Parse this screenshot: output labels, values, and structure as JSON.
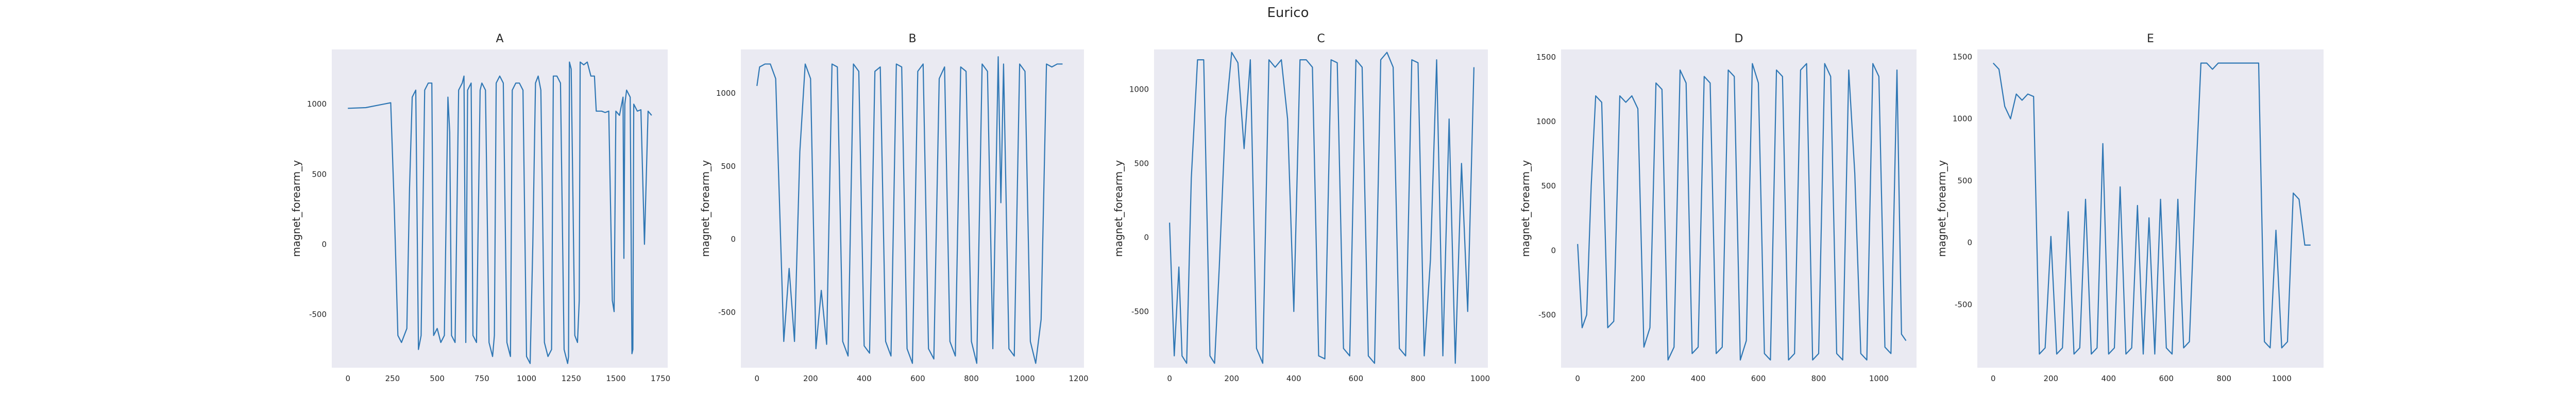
{
  "figure": {
    "suptitle": "Eurico"
  },
  "colors": {
    "line": "#2f77b4",
    "panel_bg": "#eaeaf2",
    "text": "#262626"
  },
  "chart_data": [
    {
      "type": "line",
      "title": "A",
      "xlabel": "",
      "ylabel": "magnet_forearm_y",
      "xlim": [
        -90,
        1790
      ],
      "ylim": [
        -880,
        1390
      ],
      "xticks": [
        0,
        250,
        500,
        750,
        1000,
        1250,
        1500,
        1750
      ],
      "yticks": [
        -500,
        0,
        500,
        1000
      ],
      "grid": false,
      "series": [
        {
          "x": [
            0,
            100,
            200,
            240,
            260,
            280,
            300,
            330,
            345,
            360,
            380,
            395,
            410,
            430,
            450,
            470,
            480,
            500,
            520,
            540,
            560,
            570,
            580,
            600,
            620,
            640,
            650,
            660,
            670,
            690,
            700,
            720,
            740,
            750,
            770,
            790,
            810,
            820,
            830,
            850,
            870,
            890,
            900,
            910,
            920,
            940,
            960,
            980,
            1000,
            1020,
            1035,
            1050,
            1065,
            1080,
            1100,
            1120,
            1140,
            1150,
            1170,
            1190,
            1210,
            1230,
            1235,
            1240,
            1250,
            1270,
            1285,
            1295,
            1300,
            1320,
            1340,
            1360,
            1380,
            1390,
            1400,
            1420,
            1440,
            1460,
            1480,
            1490,
            1500,
            1520,
            1540,
            1545,
            1550,
            1560,
            1580,
            1590,
            1595,
            1600,
            1620,
            1640,
            1660,
            1680,
            1700
          ],
          "y": [
            970,
            975,
            1000,
            1010,
            250,
            -650,
            -700,
            -600,
            400,
            1050,
            1100,
            -750,
            -650,
            1100,
            1150,
            1150,
            -650,
            -600,
            -700,
            -650,
            1050,
            800,
            -650,
            -700,
            1100,
            1150,
            1200,
            -700,
            1100,
            1150,
            -650,
            -700,
            1100,
            1150,
            1100,
            -700,
            -800,
            -650,
            1150,
            1200,
            1150,
            -700,
            -750,
            -800,
            1100,
            1150,
            1150,
            1100,
            -800,
            -850,
            0,
            1150,
            1200,
            1100,
            -700,
            -800,
            -750,
            1200,
            1200,
            1150,
            -750,
            -850,
            -800,
            1300,
            1250,
            -650,
            -700,
            -400,
            1300,
            1280,
            1300,
            1200,
            1200,
            950,
            950,
            950,
            940,
            950,
            -400,
            -480,
            950,
            920,
            1050,
            -100,
            1000,
            1100,
            1050,
            -780,
            -750,
            1000,
            950,
            960,
            0,
            950,
            920
          ]
        }
      ]
    },
    {
      "type": "line",
      "title": "B",
      "xlabel": "",
      "ylabel": "magnet_forearm_y",
      "xlim": [
        -60,
        1220
      ],
      "ylim": [
        -880,
        1300
      ],
      "xticks": [
        0,
        200,
        400,
        600,
        800,
        1000,
        1200
      ],
      "yticks": [
        -500,
        0,
        500,
        1000
      ],
      "grid": false,
      "series": [
        {
          "x": [
            0,
            10,
            30,
            50,
            70,
            80,
            100,
            120,
            140,
            160,
            180,
            200,
            220,
            240,
            260,
            280,
            300,
            320,
            340,
            360,
            380,
            400,
            420,
            440,
            460,
            480,
            500,
            520,
            540,
            560,
            580,
            600,
            620,
            640,
            660,
            680,
            700,
            720,
            740,
            760,
            780,
            800,
            820,
            840,
            860,
            880,
            900,
            910,
            920,
            940,
            960,
            980,
            1000,
            1020,
            1040,
            1060,
            1080,
            1100,
            1120,
            1140
          ],
          "y": [
            1050,
            1180,
            1200,
            1200,
            1100,
            500,
            -700,
            -200,
            -700,
            600,
            1200,
            1100,
            -750,
            -350,
            -720,
            1200,
            1180,
            -700,
            -800,
            1200,
            1150,
            -730,
            -780,
            1150,
            1180,
            -700,
            -800,
            1200,
            1180,
            -750,
            -850,
            1150,
            1200,
            -750,
            -820,
            1100,
            1180,
            -700,
            -800,
            1180,
            1150,
            -700,
            -850,
            1200,
            1150,
            -750,
            1250,
            250,
            1200,
            -750,
            -800,
            1200,
            1150,
            -700,
            -850,
            -550,
            1200,
            1180,
            1200,
            1200
          ]
        }
      ]
    },
    {
      "type": "line",
      "title": "C",
      "xlabel": "",
      "ylabel": "magnet_forearm_y",
      "xlim": [
        -50,
        1025
      ],
      "ylim": [
        -880,
        1270
      ],
      "xticks": [
        0,
        200,
        400,
        600,
        800,
        1000
      ],
      "yticks": [
        -500,
        0,
        500,
        1000
      ],
      "grid": false,
      "series": [
        {
          "x": [
            0,
            15,
            30,
            40,
            55,
            70,
            90,
            110,
            130,
            145,
            160,
            180,
            200,
            220,
            240,
            260,
            280,
            300,
            320,
            340,
            360,
            380,
            400,
            420,
            440,
            460,
            480,
            500,
            520,
            540,
            560,
            580,
            600,
            620,
            640,
            660,
            680,
            700,
            720,
            740,
            760,
            780,
            800,
            820,
            840,
            860,
            880,
            900,
            920,
            940,
            960,
            980
          ],
          "y": [
            100,
            -800,
            -200,
            -800,
            -850,
            400,
            1200,
            1200,
            -800,
            -850,
            -200,
            800,
            1250,
            1180,
            600,
            1200,
            -750,
            -850,
            1200,
            1150,
            1200,
            800,
            -500,
            1200,
            1200,
            1150,
            -800,
            -820,
            1200,
            1180,
            -750,
            -800,
            1200,
            1150,
            -800,
            -850,
            1200,
            1250,
            1150,
            -750,
            -800,
            1200,
            1180,
            -800,
            -150,
            1200,
            -800,
            800,
            -850,
            500,
            -500,
            1150
          ]
        }
      ]
    },
    {
      "type": "line",
      "title": "D",
      "xlabel": "",
      "ylabel": "magnet_forearm_y",
      "xlim": [
        -55,
        1125
      ],
      "ylim": [
        -910,
        1560
      ],
      "xticks": [
        0,
        200,
        400,
        600,
        800,
        1000
      ],
      "yticks": [
        -500,
        0,
        500,
        1000,
        1500
      ],
      "grid": false,
      "series": [
        {
          "x": [
            0,
            15,
            30,
            45,
            60,
            80,
            100,
            120,
            140,
            160,
            180,
            200,
            220,
            240,
            260,
            280,
            300,
            320,
            340,
            360,
            380,
            400,
            420,
            440,
            460,
            480,
            500,
            520,
            540,
            560,
            580,
            600,
            620,
            640,
            660,
            680,
            700,
            720,
            740,
            760,
            780,
            800,
            820,
            840,
            860,
            880,
            900,
            920,
            940,
            960,
            980,
            1000,
            1020,
            1040,
            1060,
            1075,
            1090
          ],
          "y": [
            50,
            -600,
            -500,
            500,
            1200,
            1150,
            -600,
            -550,
            1200,
            1150,
            1200,
            1100,
            -750,
            -600,
            1300,
            1250,
            -850,
            -750,
            1400,
            1300,
            -800,
            -750,
            1350,
            1300,
            -800,
            -750,
            1400,
            1350,
            -850,
            -700,
            1450,
            1300,
            -800,
            -850,
            1400,
            1350,
            -850,
            -800,
            1400,
            1450,
            -850,
            -800,
            1450,
            1350,
            -800,
            -850,
            1400,
            600,
            -800,
            -850,
            1450,
            1350,
            -750,
            -800,
            1400,
            -650,
            -700
          ]
        }
      ]
    },
    {
      "type": "line",
      "title": "E",
      "xlabel": "",
      "ylabel": "magnet_forearm_y",
      "xlim": [
        -55,
        1145
      ],
      "ylim": [
        -1010,
        1560
      ],
      "xticks": [
        0,
        200,
        400,
        600,
        800,
        1000
      ],
      "yticks": [
        -500,
        0,
        500,
        1000,
        1500
      ],
      "grid": false,
      "series": [
        {
          "x": [
            0,
            20,
            40,
            60,
            80,
            100,
            120,
            140,
            160,
            180,
            200,
            220,
            240,
            260,
            280,
            300,
            320,
            340,
            360,
            380,
            400,
            420,
            440,
            460,
            480,
            500,
            520,
            540,
            560,
            580,
            600,
            620,
            640,
            660,
            680,
            700,
            720,
            740,
            760,
            780,
            800,
            820,
            840,
            860,
            880,
            900,
            920,
            940,
            960,
            980,
            1000,
            1020,
            1040,
            1060,
            1080,
            1100
          ],
          "y": [
            1450,
            1400,
            1100,
            1000,
            1200,
            1150,
            1200,
            1180,
            -900,
            -850,
            50,
            -900,
            -850,
            250,
            -900,
            -850,
            350,
            -900,
            -850,
            800,
            -900,
            -850,
            450,
            -900,
            -850,
            300,
            -900,
            200,
            -900,
            350,
            -850,
            -900,
            350,
            -850,
            -800,
            400,
            1450,
            1450,
            1400,
            1450,
            1450,
            1450,
            1450,
            1450,
            1450,
            1450,
            1450,
            -800,
            -850,
            100,
            -850,
            -800,
            400,
            350,
            -20,
            -20
          ]
        }
      ]
    }
  ]
}
